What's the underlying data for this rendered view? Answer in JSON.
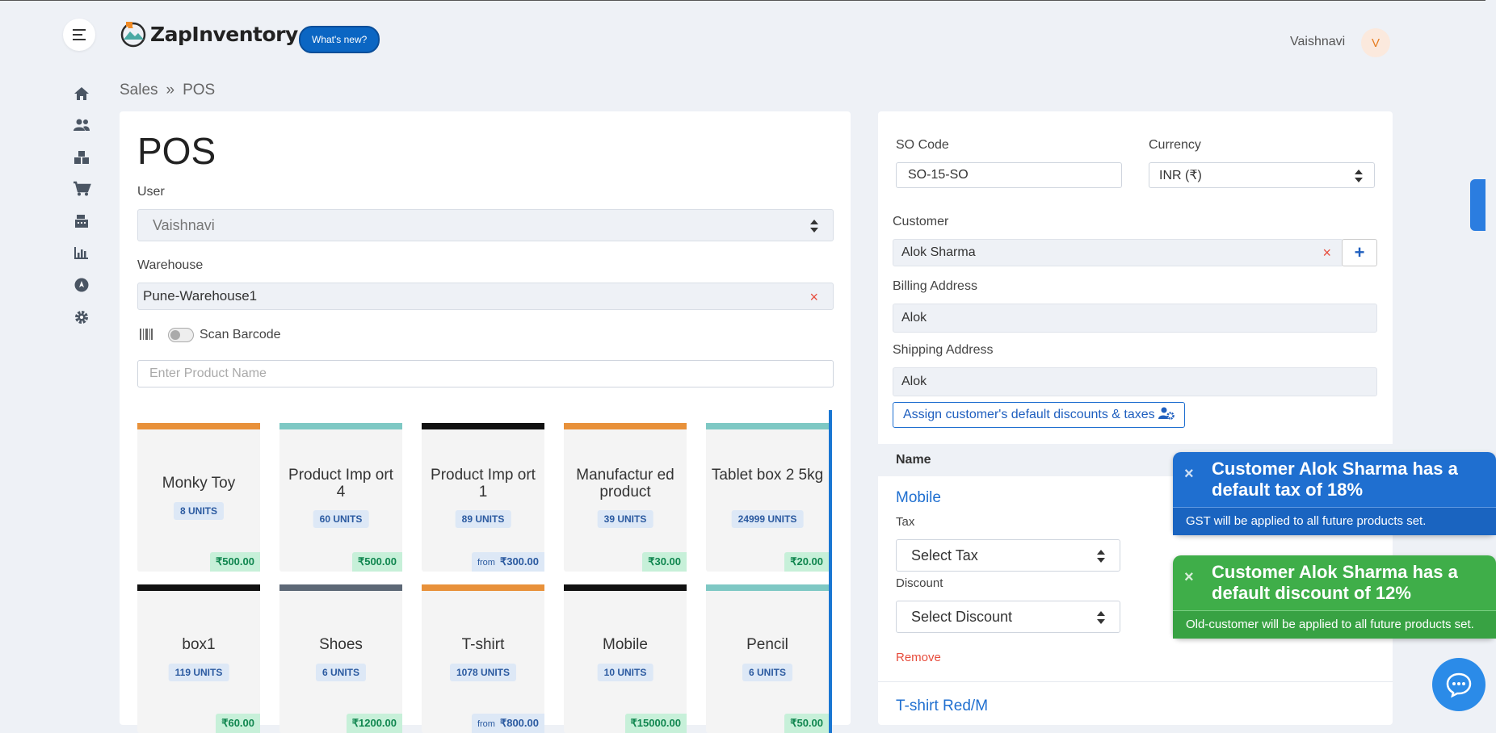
{
  "header": {
    "logo_text": "ZapInventory",
    "whats_new": "What's new?",
    "user_name": "Vaishnavi",
    "avatar_initial": "V"
  },
  "sidebar": {
    "icons": [
      "home-icon",
      "users-icon",
      "boxes-icon",
      "cart-icon",
      "cash-register-icon",
      "chart-icon",
      "compass-icon",
      "gear-icon"
    ]
  },
  "breadcrumb": {
    "parent": "Sales",
    "separator": "»",
    "current": "POS"
  },
  "pos": {
    "title": "POS",
    "user_label": "User",
    "user_value": "Vaishnavi",
    "warehouse_label": "Warehouse",
    "warehouse_value": "Pune-Warehouse1",
    "warehouse_clear": "×",
    "scan_label": "Scan Barcode",
    "product_placeholder": "Enter Product Name"
  },
  "products": [
    {
      "name": "Monky Toy",
      "units": "8 UNITS",
      "price": "₹500.00",
      "from": "",
      "color": "#e8913a"
    },
    {
      "name": "Product Imp ort 4",
      "units": "60 UNITS",
      "price": "₹500.00",
      "from": "",
      "color": "#7ec8c4"
    },
    {
      "name": "Product Imp ort 1",
      "units": "89 UNITS",
      "price": "₹300.00",
      "from": "from",
      "color": "#111111"
    },
    {
      "name": "Manufactur ed product",
      "units": "39 UNITS",
      "price": "₹30.00",
      "from": "",
      "color": "#e8913a"
    },
    {
      "name": "Tablet box 2 5kg",
      "units": "24999 UNITS",
      "price": "₹20.00",
      "from": "",
      "color": "#7ec8c4"
    },
    {
      "name": "box1",
      "units": "119 UNITS",
      "price": "₹60.00",
      "from": "",
      "color": "#111111"
    },
    {
      "name": "Shoes",
      "units": "6 UNITS",
      "price": "₹1200.00",
      "from": "",
      "color": "#5d6876"
    },
    {
      "name": "T-shirt",
      "units": "1078 UNITS",
      "price": "₹800.00",
      "from": "from",
      "color": "#e8913a"
    },
    {
      "name": "Mobile",
      "units": "10 UNITS",
      "price": "₹15000.00",
      "from": "",
      "color": "#111111"
    },
    {
      "name": "Pencil",
      "units": "6 UNITS",
      "price": "₹50.00",
      "from": "",
      "color": "#7ec8c4"
    }
  ],
  "order": {
    "so_code_label": "SO Code",
    "so_code_value": "SO-15-SO",
    "currency_label": "Currency",
    "currency_value": "INR (₹)",
    "customer_label": "Customer",
    "customer_value": "Alok Sharma",
    "customer_clear": "×",
    "add_customer": "+",
    "billing_label": "Billing Address",
    "billing_value": "Alok",
    "shipping_label": "Shipping Address",
    "shipping_value": "Alok",
    "assign_button": "Assign customer's default discounts & taxes",
    "name_header": "Name",
    "items": [
      {
        "name": "Mobile",
        "tax_label": "Tax",
        "tax_value": "Select Tax",
        "discount_label": "Discount",
        "discount_value": "Select Discount",
        "remove": "Remove"
      },
      {
        "name": "T-shirt Red/M"
      }
    ]
  },
  "toasts": [
    {
      "close": "×",
      "title": "Customer Alok Sharma has a default tax of 18%",
      "body": "GST will be applied to all future products set."
    },
    {
      "close": "×",
      "title": "Customer Alok Sharma has a default discount of 12%",
      "body": "Old-customer will be applied to all future products set."
    }
  ]
}
